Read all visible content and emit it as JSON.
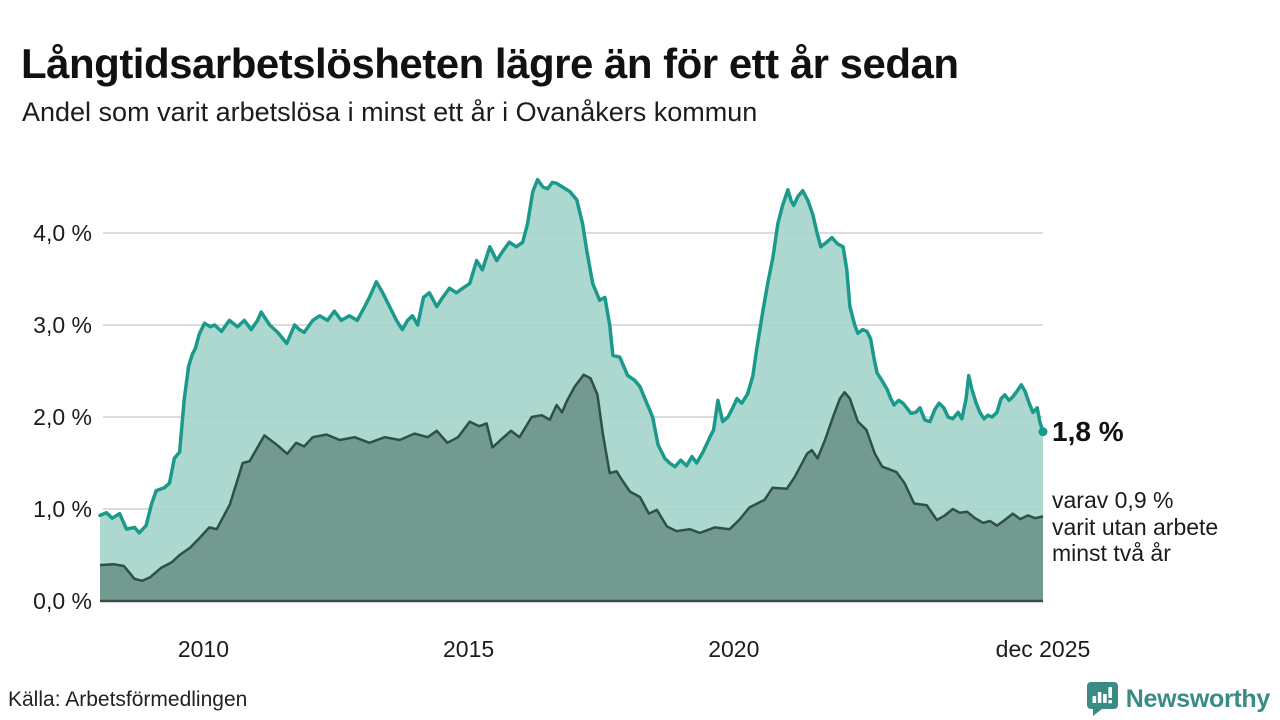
{
  "header": {
    "title": "Långtidsarbetslösheten lägre än för ett år sedan",
    "subtitle": "Andel som varit arbetslösa i minst ett år i Ovanåkers kommun"
  },
  "annotations": {
    "latest_value": "1,8 %",
    "secondary": "varav 0,9 %\nvarit utan arbete\nminst två år"
  },
  "footer": {
    "source": "Källa: Arbetsförmedlingen",
    "brand": "Newsworthy"
  },
  "colors": {
    "series1_line": "#1b998b",
    "series1_fill": "#a3d4cb",
    "series2_line": "#2d5049",
    "series2_fill": "#739a90",
    "gridline": "#dcdcdc",
    "axis_line": "#3b4b46",
    "brand_teal": "#3a8b83",
    "tick_text": "#1c1c1c",
    "title_text": "#111111"
  },
  "chart_data": {
    "type": "area",
    "title": "Andel som varit arbetslösa i minst ett år i Ovanåkers kommun",
    "unit": "%",
    "grid": true,
    "legend_position": "none",
    "xlim": [
      2008.05,
      2025.83
    ],
    "ylim": [
      0,
      4.75
    ],
    "x_ticks": [
      {
        "label": "2010",
        "value": 2010
      },
      {
        "label": "2015",
        "value": 2015
      },
      {
        "label": "2020",
        "value": 2020
      },
      {
        "label": "dec 2025",
        "value": 2025.83
      }
    ],
    "y_ticks": [
      {
        "label": "0,0 %",
        "value": 0
      },
      {
        "label": "1,0 %",
        "value": 1
      },
      {
        "label": "2,0 %",
        "value": 2
      },
      {
        "label": "3,0 %",
        "value": 3
      },
      {
        "label": "4,0 %",
        "value": 4
      }
    ],
    "series": [
      {
        "name": "Arbetslösa minst ett år",
        "latest_label": "1,8 %",
        "latest_value": 1.8,
        "points": [
          [
            2008.05,
            0.93
          ],
          [
            2008.17,
            0.96
          ],
          [
            2008.28,
            0.9
          ],
          [
            2008.42,
            0.95
          ],
          [
            2008.55,
            0.78
          ],
          [
            2008.7,
            0.8
          ],
          [
            2008.79,
            0.74
          ],
          [
            2008.92,
            0.82
          ],
          [
            2009.02,
            1.05
          ],
          [
            2009.11,
            1.2
          ],
          [
            2009.26,
            1.23
          ],
          [
            2009.36,
            1.28
          ],
          [
            2009.45,
            1.55
          ],
          [
            2009.55,
            1.62
          ],
          [
            2009.64,
            2.2
          ],
          [
            2009.72,
            2.55
          ],
          [
            2009.79,
            2.68
          ],
          [
            2009.85,
            2.75
          ],
          [
            2009.92,
            2.9
          ],
          [
            2010.02,
            3.02
          ],
          [
            2010.13,
            2.98
          ],
          [
            2010.21,
            3.0
          ],
          [
            2010.34,
            2.93
          ],
          [
            2010.49,
            3.05
          ],
          [
            2010.64,
            2.98
          ],
          [
            2010.77,
            3.05
          ],
          [
            2010.9,
            2.95
          ],
          [
            2011.02,
            3.05
          ],
          [
            2011.09,
            3.14
          ],
          [
            2011.25,
            3.0
          ],
          [
            2011.4,
            2.92
          ],
          [
            2011.57,
            2.8
          ],
          [
            2011.72,
            3.0
          ],
          [
            2011.81,
            2.95
          ],
          [
            2011.9,
            2.92
          ],
          [
            2012.06,
            3.05
          ],
          [
            2012.19,
            3.1
          ],
          [
            2012.34,
            3.05
          ],
          [
            2012.47,
            3.15
          ],
          [
            2012.6,
            3.05
          ],
          [
            2012.75,
            3.1
          ],
          [
            2012.9,
            3.05
          ],
          [
            2013.04,
            3.2
          ],
          [
            2013.13,
            3.3
          ],
          [
            2013.26,
            3.47
          ],
          [
            2013.38,
            3.35
          ],
          [
            2013.51,
            3.2
          ],
          [
            2013.64,
            3.05
          ],
          [
            2013.75,
            2.95
          ],
          [
            2013.85,
            3.05
          ],
          [
            2013.94,
            3.1
          ],
          [
            2014.04,
            3.0
          ],
          [
            2014.15,
            3.3
          ],
          [
            2014.26,
            3.35
          ],
          [
            2014.4,
            3.2
          ],
          [
            2014.51,
            3.3
          ],
          [
            2014.64,
            3.4
          ],
          [
            2014.77,
            3.35
          ],
          [
            2014.89,
            3.4
          ],
          [
            2015.02,
            3.45
          ],
          [
            2015.15,
            3.7
          ],
          [
            2015.26,
            3.6
          ],
          [
            2015.4,
            3.85
          ],
          [
            2015.53,
            3.7
          ],
          [
            2015.64,
            3.8
          ],
          [
            2015.77,
            3.9
          ],
          [
            2015.9,
            3.85
          ],
          [
            2016.02,
            3.9
          ],
          [
            2016.11,
            4.1
          ],
          [
            2016.21,
            4.45
          ],
          [
            2016.3,
            4.58
          ],
          [
            2016.4,
            4.5
          ],
          [
            2016.49,
            4.48
          ],
          [
            2016.58,
            4.55
          ],
          [
            2016.66,
            4.54
          ],
          [
            2016.77,
            4.5
          ],
          [
            2016.91,
            4.45
          ],
          [
            2017.04,
            4.36
          ],
          [
            2017.15,
            4.1
          ],
          [
            2017.23,
            3.8
          ],
          [
            2017.34,
            3.45
          ],
          [
            2017.47,
            3.27
          ],
          [
            2017.57,
            3.3
          ],
          [
            2017.66,
            3.0
          ],
          [
            2017.72,
            2.67
          ],
          [
            2017.85,
            2.65
          ],
          [
            2018.0,
            2.45
          ],
          [
            2018.13,
            2.4
          ],
          [
            2018.23,
            2.33
          ],
          [
            2018.36,
            2.15
          ],
          [
            2018.47,
            2.0
          ],
          [
            2018.57,
            1.7
          ],
          [
            2018.7,
            1.55
          ],
          [
            2018.79,
            1.5
          ],
          [
            2018.89,
            1.46
          ],
          [
            2019.0,
            1.53
          ],
          [
            2019.11,
            1.47
          ],
          [
            2019.21,
            1.57
          ],
          [
            2019.3,
            1.5
          ],
          [
            2019.42,
            1.62
          ],
          [
            2019.55,
            1.78
          ],
          [
            2019.62,
            1.86
          ],
          [
            2019.7,
            2.18
          ],
          [
            2019.79,
            1.95
          ],
          [
            2019.89,
            2.0
          ],
          [
            2019.98,
            2.1
          ],
          [
            2020.06,
            2.2
          ],
          [
            2020.15,
            2.15
          ],
          [
            2020.26,
            2.25
          ],
          [
            2020.36,
            2.45
          ],
          [
            2020.43,
            2.73
          ],
          [
            2020.55,
            3.16
          ],
          [
            2020.64,
            3.45
          ],
          [
            2020.74,
            3.74
          ],
          [
            2020.83,
            4.1
          ],
          [
            2020.92,
            4.3
          ],
          [
            2021.02,
            4.47
          ],
          [
            2021.08,
            4.35
          ],
          [
            2021.13,
            4.3
          ],
          [
            2021.21,
            4.4
          ],
          [
            2021.3,
            4.46
          ],
          [
            2021.4,
            4.35
          ],
          [
            2021.49,
            4.2
          ],
          [
            2021.57,
            4.0
          ],
          [
            2021.64,
            3.85
          ],
          [
            2021.75,
            3.9
          ],
          [
            2021.85,
            3.95
          ],
          [
            2021.96,
            3.88
          ],
          [
            2022.06,
            3.85
          ],
          [
            2022.13,
            3.6
          ],
          [
            2022.19,
            3.2
          ],
          [
            2022.28,
            3.0
          ],
          [
            2022.34,
            2.91
          ],
          [
            2022.43,
            2.95
          ],
          [
            2022.51,
            2.93
          ],
          [
            2022.58,
            2.85
          ],
          [
            2022.64,
            2.65
          ],
          [
            2022.7,
            2.48
          ],
          [
            2022.79,
            2.4
          ],
          [
            2022.89,
            2.3
          ],
          [
            2022.96,
            2.2
          ],
          [
            2023.02,
            2.13
          ],
          [
            2023.11,
            2.18
          ],
          [
            2023.19,
            2.15
          ],
          [
            2023.26,
            2.1
          ],
          [
            2023.34,
            2.04
          ],
          [
            2023.43,
            2.05
          ],
          [
            2023.51,
            2.1
          ],
          [
            2023.6,
            1.97
          ],
          [
            2023.7,
            1.95
          ],
          [
            2023.79,
            2.08
          ],
          [
            2023.87,
            2.15
          ],
          [
            2023.96,
            2.1
          ],
          [
            2024.04,
            2.0
          ],
          [
            2024.13,
            1.98
          ],
          [
            2024.23,
            2.05
          ],
          [
            2024.3,
            1.98
          ],
          [
            2024.38,
            2.2
          ],
          [
            2024.43,
            2.45
          ],
          [
            2024.49,
            2.3
          ],
          [
            2024.57,
            2.15
          ],
          [
            2024.64,
            2.05
          ],
          [
            2024.72,
            1.98
          ],
          [
            2024.79,
            2.02
          ],
          [
            2024.87,
            2.0
          ],
          [
            2024.96,
            2.05
          ],
          [
            2025.04,
            2.2
          ],
          [
            2025.11,
            2.24
          ],
          [
            2025.19,
            2.18
          ],
          [
            2025.26,
            2.22
          ],
          [
            2025.34,
            2.28
          ],
          [
            2025.42,
            2.35
          ],
          [
            2025.49,
            2.28
          ],
          [
            2025.57,
            2.15
          ],
          [
            2025.64,
            2.05
          ],
          [
            2025.72,
            2.1
          ],
          [
            2025.77,
            1.95
          ],
          [
            2025.83,
            1.84
          ]
        ]
      },
      {
        "name": "Arbetslösa minst två år",
        "latest_label": "varav 0,9 % varit utan arbete minst två år",
        "latest_value": 0.9,
        "points": [
          [
            2008.05,
            0.39
          ],
          [
            2008.3,
            0.4
          ],
          [
            2008.5,
            0.38
          ],
          [
            2008.7,
            0.24
          ],
          [
            2008.85,
            0.22
          ],
          [
            2009.0,
            0.26
          ],
          [
            2009.2,
            0.36
          ],
          [
            2009.4,
            0.42
          ],
          [
            2009.55,
            0.5
          ],
          [
            2009.75,
            0.58
          ],
          [
            2009.92,
            0.68
          ],
          [
            2010.11,
            0.8
          ],
          [
            2010.25,
            0.78
          ],
          [
            2010.5,
            1.05
          ],
          [
            2010.74,
            1.5
          ],
          [
            2010.87,
            1.52
          ],
          [
            2011.0,
            1.65
          ],
          [
            2011.15,
            1.8
          ],
          [
            2011.38,
            1.7
          ],
          [
            2011.58,
            1.6
          ],
          [
            2011.75,
            1.72
          ],
          [
            2011.9,
            1.68
          ],
          [
            2012.06,
            1.78
          ],
          [
            2012.32,
            1.81
          ],
          [
            2012.57,
            1.75
          ],
          [
            2012.85,
            1.78
          ],
          [
            2013.13,
            1.72
          ],
          [
            2013.42,
            1.78
          ],
          [
            2013.7,
            1.75
          ],
          [
            2013.98,
            1.82
          ],
          [
            2014.23,
            1.78
          ],
          [
            2014.4,
            1.85
          ],
          [
            2014.6,
            1.72
          ],
          [
            2014.8,
            1.78
          ],
          [
            2015.02,
            1.95
          ],
          [
            2015.2,
            1.9
          ],
          [
            2015.34,
            1.93
          ],
          [
            2015.45,
            1.67
          ],
          [
            2015.64,
            1.77
          ],
          [
            2015.8,
            1.85
          ],
          [
            2015.96,
            1.78
          ],
          [
            2016.19,
            2.0
          ],
          [
            2016.38,
            2.02
          ],
          [
            2016.53,
            1.97
          ],
          [
            2016.66,
            2.13
          ],
          [
            2016.76,
            2.05
          ],
          [
            2016.85,
            2.17
          ],
          [
            2017.0,
            2.33
          ],
          [
            2017.17,
            2.46
          ],
          [
            2017.3,
            2.42
          ],
          [
            2017.43,
            2.24
          ],
          [
            2017.53,
            1.82
          ],
          [
            2017.66,
            1.39
          ],
          [
            2017.79,
            1.41
          ],
          [
            2017.9,
            1.31
          ],
          [
            2018.04,
            1.19
          ],
          [
            2018.23,
            1.13
          ],
          [
            2018.4,
            0.95
          ],
          [
            2018.55,
            0.99
          ],
          [
            2018.74,
            0.81
          ],
          [
            2018.92,
            0.76
          ],
          [
            2019.17,
            0.78
          ],
          [
            2019.36,
            0.74
          ],
          [
            2019.64,
            0.8
          ],
          [
            2019.92,
            0.78
          ],
          [
            2020.1,
            0.88
          ],
          [
            2020.3,
            1.02
          ],
          [
            2020.58,
            1.1
          ],
          [
            2020.73,
            1.23
          ],
          [
            2021.0,
            1.22
          ],
          [
            2021.15,
            1.35
          ],
          [
            2021.38,
            1.6
          ],
          [
            2021.47,
            1.64
          ],
          [
            2021.58,
            1.55
          ],
          [
            2021.72,
            1.75
          ],
          [
            2021.87,
            2.0
          ],
          [
            2022.0,
            2.2
          ],
          [
            2022.09,
            2.27
          ],
          [
            2022.19,
            2.2
          ],
          [
            2022.34,
            1.95
          ],
          [
            2022.5,
            1.86
          ],
          [
            2022.66,
            1.6
          ],
          [
            2022.8,
            1.46
          ],
          [
            2022.94,
            1.43
          ],
          [
            2023.07,
            1.4
          ],
          [
            2023.22,
            1.28
          ],
          [
            2023.4,
            1.06
          ],
          [
            2023.64,
            1.04
          ],
          [
            2023.83,
            0.88
          ],
          [
            2023.98,
            0.93
          ],
          [
            2024.13,
            1.0
          ],
          [
            2024.26,
            0.96
          ],
          [
            2024.4,
            0.97
          ],
          [
            2024.55,
            0.9
          ],
          [
            2024.7,
            0.85
          ],
          [
            2024.83,
            0.87
          ],
          [
            2024.96,
            0.82
          ],
          [
            2025.11,
            0.88
          ],
          [
            2025.26,
            0.95
          ],
          [
            2025.4,
            0.89
          ],
          [
            2025.55,
            0.93
          ],
          [
            2025.68,
            0.9
          ],
          [
            2025.83,
            0.92
          ]
        ]
      }
    ]
  }
}
